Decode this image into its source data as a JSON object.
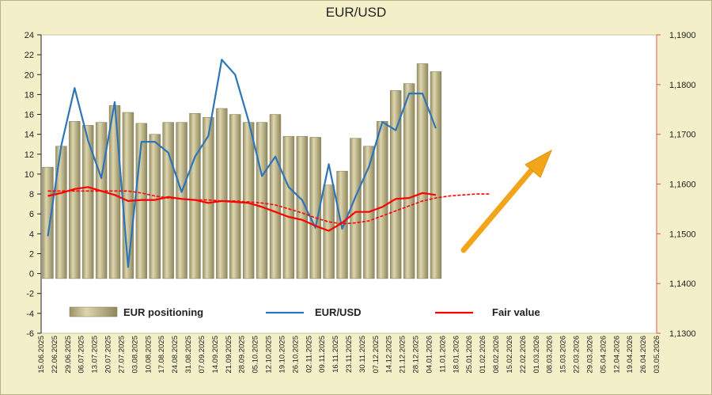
{
  "chart_data": {
    "type": "bar",
    "title": "EUR/USD",
    "x_labels": [
      "15.06.2025",
      "22.06.2025",
      "29.06.2025",
      "06.07.2025",
      "13.07.2025",
      "20.07.2025",
      "27.07.2025",
      "03.08.2025",
      "10.08.2025",
      "17.08.2025",
      "24.08.2025",
      "31.08.2025",
      "07.09.2025",
      "14.09.2025",
      "21.09.2025",
      "28.09.2025",
      "05.10.2025",
      "12.10.2025",
      "19.10.2025",
      "26.10.2025",
      "02.11.2025",
      "09.11.2025",
      "16.11.2025",
      "23.11.2025",
      "30.11.2025",
      "07.12.2025",
      "14.12.2025",
      "21.12.2025",
      "28.12.2025",
      "04.01.2026",
      "11.01.2026",
      "18.01.2026",
      "25.01.2026",
      "01.02.2026",
      "08.02.2026",
      "15.02.2026",
      "22.02.2026",
      "01.03.2026",
      "08.03.2026",
      "15.03.2026",
      "22.03.2026",
      "29.03.2026",
      "05.04.2026",
      "12.04.2026",
      "19.04.2026",
      "26.04.2026",
      "03.05.2026"
    ],
    "left_axis": {
      "min": -6,
      "max": 24,
      "step": 2,
      "ticks": [
        "-6",
        "-4",
        "-2",
        "0",
        "2",
        "4",
        "6",
        "8",
        "10",
        "12",
        "14",
        "16",
        "18",
        "20",
        "22",
        "24"
      ]
    },
    "right_axis": {
      "min": 1.13,
      "max": 1.19,
      "ticks": [
        "1,1300",
        "1,1400",
        "1,1500",
        "1,1600",
        "1,1700",
        "1,1800",
        "1,1900"
      ]
    },
    "bar_color": "#c2bb90",
    "series": [
      {
        "name": "EUR positioning",
        "type": "bar",
        "axis": "left",
        "color": "#b5ad7e",
        "values": [
          10.7,
          12.8,
          15.3,
          14.9,
          15.2,
          16.9,
          16.2,
          15.1,
          14.0,
          15.2,
          15.2,
          16.1,
          15.7,
          16.6,
          16.0,
          15.2,
          15.2,
          16.0,
          13.8,
          13.8,
          13.7,
          8.9,
          10.3,
          13.6,
          12.8,
          15.3,
          18.4,
          19.1,
          21.1,
          20.3
        ]
      },
      {
        "name": "EUR/USD",
        "type": "line",
        "axis": "right",
        "color": "#2e75b6",
        "values": [
          1.1495,
          1.1677,
          1.1793,
          1.1688,
          1.1612,
          1.1765,
          1.1433,
          1.1685,
          1.1685,
          1.1663,
          1.1584,
          1.1655,
          1.1697,
          1.185,
          1.182,
          1.1727,
          1.1616,
          1.1655,
          1.1594,
          1.1568,
          1.1512,
          1.164,
          1.151,
          1.1575,
          1.1635,
          1.1725,
          1.1708,
          1.1782,
          1.1782,
          1.1712
        ]
      },
      {
        "name": "Fair value",
        "type": "line",
        "axis": "left",
        "color": "#ff0000",
        "values": [
          7.8,
          8.1,
          8.5,
          8.7,
          8.3,
          7.9,
          7.3,
          7.4,
          7.4,
          7.7,
          7.5,
          7.4,
          7.1,
          7.3,
          7.2,
          7.1,
          6.7,
          6.2,
          5.7,
          5.4,
          4.8,
          4.3,
          5.1,
          6.2,
          6.2,
          6.7,
          7.5,
          7.6,
          8.1,
          7.9
        ]
      },
      {
        "name": "Fair value trend",
        "type": "line",
        "axis": "left",
        "color": "#ff0000",
        "dashed": true,
        "values": [
          8.3,
          8.3,
          8.3,
          8.3,
          8.3,
          8.3,
          8.3,
          8.1,
          7.8,
          7.6,
          7.5,
          7.4,
          7.4,
          7.3,
          7.3,
          7.2,
          7.1,
          6.9,
          6.5,
          6.1,
          5.6,
          5.2,
          5.0,
          5.1,
          5.3,
          5.8,
          6.3,
          6.8,
          7.3,
          7.6,
          7.8,
          7.9,
          8.0,
          8.0
        ]
      }
    ],
    "legend": [
      {
        "label": "EUR positioning",
        "marker": "bar"
      },
      {
        "label": "EUR/USD",
        "marker": "line"
      },
      {
        "label": "Fair value",
        "marker": "line"
      }
    ],
    "legend_position": "bottom",
    "annotation": {
      "type": "arrow",
      "direction": "up-right",
      "color": "#f2a51a"
    },
    "grid": false
  }
}
